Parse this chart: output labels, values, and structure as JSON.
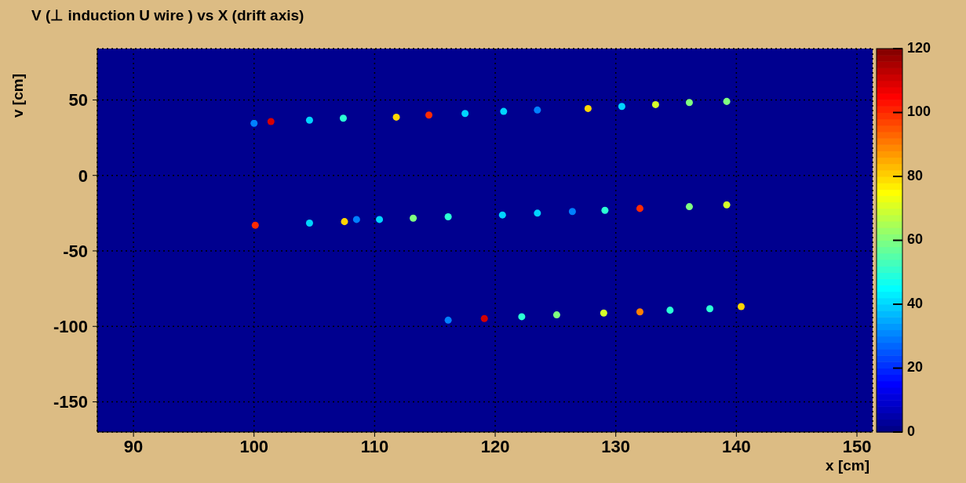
{
  "chart_data": {
    "type": "scatter",
    "title": "V (⊥ induction U wire ) vs X (drift axis)",
    "xlabel": "x [cm]",
    "ylabel": "v [cm]",
    "x": [
      100.0,
      101.4,
      104.6,
      107.4,
      111.8,
      114.5,
      117.5,
      120.7,
      123.5,
      127.7,
      130.5,
      133.3,
      136.1,
      139.2,
      100.1,
      104.6,
      107.5,
      108.5,
      110.4,
      113.2,
      116.1,
      120.6,
      123.5,
      126.4,
      129.1,
      132.0,
      136.1,
      139.2,
      116.1,
      119.1,
      122.2,
      125.1,
      129.0,
      132.0,
      134.5,
      137.8,
      140.4
    ],
    "values": [
      34.5,
      35.7,
      36.6,
      37.9,
      38.6,
      40.0,
      41.0,
      42.4,
      43.3,
      44.3,
      45.7,
      46.9,
      48.3,
      49.0,
      -33.0,
      -31.6,
      -30.6,
      -29.2,
      -29.2,
      -28.3,
      -27.4,
      -26.2,
      -25.0,
      -23.9,
      -23.1,
      -21.9,
      -20.7,
      -19.5,
      -95.9,
      -94.8,
      -93.6,
      -92.4,
      -91.2,
      -90.4,
      -89.3,
      -88.3,
      -86.9
    ],
    "cvalues": [
      30,
      110,
      40,
      50,
      80,
      100,
      40,
      40,
      30,
      80,
      40,
      70,
      60,
      60,
      100,
      40,
      80,
      30,
      40,
      60,
      50,
      40,
      40,
      30,
      50,
      100,
      60,
      70,
      30,
      110,
      50,
      60,
      70,
      90,
      50,
      50,
      80
    ],
    "xlim": [
      87,
      151.3
    ],
    "xticks": [
      90,
      100,
      110,
      120,
      130,
      140,
      150
    ],
    "ylim": [
      -170,
      84
    ],
    "yticks": [
      -150,
      -100,
      -50,
      0,
      50
    ],
    "clim": [
      0,
      120
    ],
    "cticks": [
      0,
      20,
      40,
      60,
      80,
      100,
      120
    ],
    "grid": true
  }
}
